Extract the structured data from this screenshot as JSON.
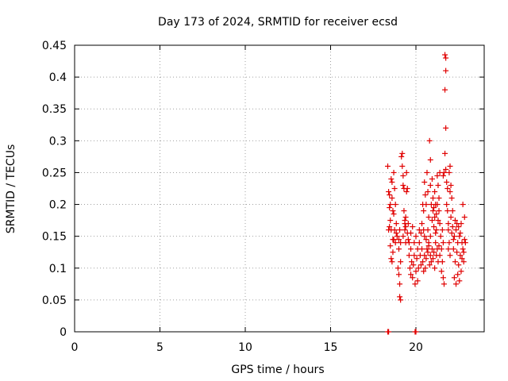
{
  "chart_data": {
    "type": "scatter",
    "title": "Day 173 of 2024, SRMTID for receiver ecsd",
    "xlabel": "GPS time / hours",
    "ylabel": "SRMTID / TECUs",
    "xlim": [
      0,
      24
    ],
    "ylim": [
      0,
      0.45
    ],
    "x_ticks": [
      0,
      5,
      10,
      15,
      20
    ],
    "y_ticks": [
      0,
      0.05,
      0.1,
      0.15,
      0.2,
      0.25,
      0.3,
      0.35,
      0.4,
      0.45
    ],
    "x_tick_labels": [
      "0",
      "5",
      "10",
      "15",
      "20"
    ],
    "y_tick_labels": [
      "0",
      "0.05",
      "0.1",
      "0.15",
      "0.2",
      "0.25",
      "0.3",
      "0.35",
      "0.4",
      "0.45"
    ],
    "grid": true,
    "marker": "plus",
    "color": "#e00000",
    "series": [
      {
        "name": "SRMTID",
        "points": [
          [
            18.35,
            0.0
          ],
          [
            18.4,
            0.0
          ],
          [
            19.95,
            0.0
          ],
          [
            20.0,
            0.0
          ],
          [
            18.35,
            0.26
          ],
          [
            18.4,
            0.22
          ],
          [
            18.45,
            0.215
          ],
          [
            18.45,
            0.195
          ],
          [
            18.5,
            0.2
          ],
          [
            18.5,
            0.175
          ],
          [
            18.55,
            0.24
          ],
          [
            18.55,
            0.16
          ],
          [
            18.6,
            0.235
          ],
          [
            18.6,
            0.21
          ],
          [
            18.65,
            0.19
          ],
          [
            18.65,
            0.145
          ],
          [
            18.7,
            0.25
          ],
          [
            18.7,
            0.185
          ],
          [
            18.75,
            0.225
          ],
          [
            18.75,
            0.16
          ],
          [
            18.8,
            0.2
          ],
          [
            18.8,
            0.14
          ],
          [
            18.85,
            0.17
          ],
          [
            18.85,
            0.155
          ],
          [
            18.5,
            0.135
          ],
          [
            18.55,
            0.115
          ],
          [
            18.6,
            0.11
          ],
          [
            18.65,
            0.125
          ],
          [
            18.4,
            0.16
          ],
          [
            18.45,
            0.165
          ],
          [
            18.7,
            0.145
          ],
          [
            18.9,
            0.15
          ],
          [
            18.95,
            0.1
          ],
          [
            19.0,
            0.13
          ],
          [
            19.0,
            0.09
          ],
          [
            19.05,
            0.075
          ],
          [
            19.05,
            0.055
          ],
          [
            19.1,
            0.05
          ],
          [
            19.1,
            0.11
          ],
          [
            19.0,
            0.145
          ],
          [
            19.05,
            0.16
          ],
          [
            19.1,
            0.14
          ],
          [
            19.15,
            0.275
          ],
          [
            19.2,
            0.26
          ],
          [
            19.2,
            0.28
          ],
          [
            19.25,
            0.23
          ],
          [
            19.25,
            0.245
          ],
          [
            19.3,
            0.225
          ],
          [
            19.3,
            0.19
          ],
          [
            19.35,
            0.17
          ],
          [
            19.35,
            0.175
          ],
          [
            19.4,
            0.165
          ],
          [
            19.4,
            0.18
          ],
          [
            19.45,
            0.22
          ],
          [
            19.45,
            0.25
          ],
          [
            19.5,
            0.225
          ],
          [
            19.5,
            0.155
          ],
          [
            19.55,
            0.145
          ],
          [
            19.55,
            0.17
          ],
          [
            19.6,
            0.14
          ],
          [
            19.25,
            0.15
          ],
          [
            19.35,
            0.16
          ],
          [
            19.4,
            0.14
          ],
          [
            19.6,
            0.12
          ],
          [
            19.65,
            0.1
          ],
          [
            19.7,
            0.09
          ],
          [
            19.7,
            0.13
          ],
          [
            19.75,
            0.11
          ],
          [
            19.8,
            0.085
          ],
          [
            19.85,
            0.105
          ],
          [
            19.9,
            0.12
          ],
          [
            19.95,
            0.075
          ],
          [
            20.0,
            0.095
          ],
          [
            20.05,
            0.115
          ],
          [
            20.1,
            0.08
          ],
          [
            20.15,
            0.1
          ],
          [
            20.2,
            0.14
          ],
          [
            20.25,
            0.12
          ],
          [
            20.3,
            0.105
          ],
          [
            20.35,
            0.13
          ],
          [
            20.4,
            0.11
          ],
          [
            20.45,
            0.095
          ],
          [
            20.5,
            0.12
          ],
          [
            20.55,
            0.1
          ],
          [
            20.6,
            0.115
          ],
          [
            20.65,
            0.13
          ],
          [
            20.7,
            0.125
          ],
          [
            20.75,
            0.14
          ],
          [
            20.8,
            0.105
          ],
          [
            20.85,
            0.12
          ],
          [
            20.9,
            0.11
          ],
          [
            20.95,
            0.13
          ],
          [
            21.0,
            0.115
          ],
          [
            21.05,
            0.125
          ],
          [
            21.1,
            0.1
          ],
          [
            21.15,
            0.14
          ],
          [
            21.2,
            0.12
          ],
          [
            21.25,
            0.13
          ],
          [
            21.3,
            0.11
          ],
          [
            21.35,
            0.135
          ],
          [
            21.4,
            0.12
          ],
          [
            19.7,
            0.155
          ],
          [
            19.8,
            0.165
          ],
          [
            19.9,
            0.14
          ],
          [
            20.0,
            0.15
          ],
          [
            20.1,
            0.13
          ],
          [
            20.2,
            0.16
          ],
          [
            20.3,
            0.155
          ],
          [
            20.35,
            0.17
          ],
          [
            20.45,
            0.16
          ],
          [
            20.5,
            0.15
          ],
          [
            20.6,
            0.145
          ],
          [
            20.7,
            0.16
          ],
          [
            20.75,
            0.135
          ],
          [
            20.85,
            0.15
          ],
          [
            20.4,
            0.2
          ],
          [
            20.45,
            0.19
          ],
          [
            20.5,
            0.235
          ],
          [
            20.55,
            0.215
          ],
          [
            20.6,
            0.2
          ],
          [
            20.65,
            0.25
          ],
          [
            20.7,
            0.22
          ],
          [
            20.75,
            0.18
          ],
          [
            20.8,
            0.3
          ],
          [
            20.85,
            0.27
          ],
          [
            20.85,
            0.23
          ],
          [
            20.9,
            0.2
          ],
          [
            20.95,
            0.24
          ],
          [
            20.95,
            0.175
          ],
          [
            21.0,
            0.21
          ],
          [
            21.0,
            0.19
          ],
          [
            21.05,
            0.165
          ],
          [
            21.05,
            0.195
          ],
          [
            21.1,
            0.22
          ],
          [
            21.1,
            0.18
          ],
          [
            21.15,
            0.2
          ],
          [
            21.15,
            0.155
          ],
          [
            21.2,
            0.185
          ],
          [
            21.2,
            0.16
          ],
          [
            21.25,
            0.245
          ],
          [
            21.25,
            0.2
          ],
          [
            21.3,
            0.23
          ],
          [
            21.3,
            0.175
          ],
          [
            21.35,
            0.21
          ],
          [
            21.35,
            0.19
          ],
          [
            21.4,
            0.25
          ],
          [
            21.4,
            0.17
          ],
          [
            21.45,
            0.15
          ],
          [
            21.5,
            0.13
          ],
          [
            21.5,
            0.095
          ],
          [
            21.55,
            0.11
          ],
          [
            21.6,
            0.085
          ],
          [
            21.6,
            0.14
          ],
          [
            21.65,
            0.075
          ],
          [
            21.55,
            0.16
          ],
          [
            21.6,
            0.245
          ],
          [
            21.65,
            0.25
          ],
          [
            21.7,
            0.435
          ],
          [
            21.75,
            0.43
          ],
          [
            21.75,
            0.41
          ],
          [
            21.7,
            0.38
          ],
          [
            21.75,
            0.32
          ],
          [
            21.7,
            0.28
          ],
          [
            21.75,
            0.255
          ],
          [
            21.8,
            0.235
          ],
          [
            21.85,
            0.225
          ],
          [
            21.8,
            0.2
          ],
          [
            21.85,
            0.19
          ],
          [
            21.9,
            0.17
          ],
          [
            21.9,
            0.16
          ],
          [
            21.95,
            0.25
          ],
          [
            22.0,
            0.22
          ],
          [
            22.0,
            0.26
          ],
          [
            22.05,
            0.23
          ],
          [
            22.1,
            0.21
          ],
          [
            22.05,
            0.18
          ],
          [
            22.1,
            0.155
          ],
          [
            22.15,
            0.165
          ],
          [
            22.2,
            0.145
          ],
          [
            22.15,
            0.19
          ],
          [
            21.95,
            0.14
          ],
          [
            22.0,
            0.12
          ],
          [
            21.9,
            0.13
          ],
          [
            22.2,
            0.13
          ],
          [
            22.25,
            0.15
          ],
          [
            22.3,
            0.11
          ],
          [
            22.35,
            0.16
          ],
          [
            22.4,
            0.125
          ],
          [
            22.45,
            0.14
          ],
          [
            22.5,
            0.105
          ],
          [
            22.55,
            0.15
          ],
          [
            22.6,
            0.12
          ],
          [
            22.65,
            0.095
          ],
          [
            22.7,
            0.14
          ],
          [
            22.75,
            0.13
          ],
          [
            22.8,
            0.11
          ],
          [
            22.85,
            0.145
          ],
          [
            22.25,
            0.085
          ],
          [
            22.35,
            0.075
          ],
          [
            22.45,
            0.09
          ],
          [
            22.55,
            0.08
          ],
          [
            22.65,
            0.17
          ],
          [
            22.75,
            0.2
          ],
          [
            22.85,
            0.18
          ],
          [
            22.9,
            0.14
          ],
          [
            22.5,
            0.165
          ],
          [
            22.6,
            0.155
          ],
          [
            22.4,
            0.17
          ],
          [
            22.3,
            0.175
          ],
          [
            22.7,
            0.115
          ],
          [
            22.8,
            0.125
          ]
        ]
      }
    ]
  }
}
